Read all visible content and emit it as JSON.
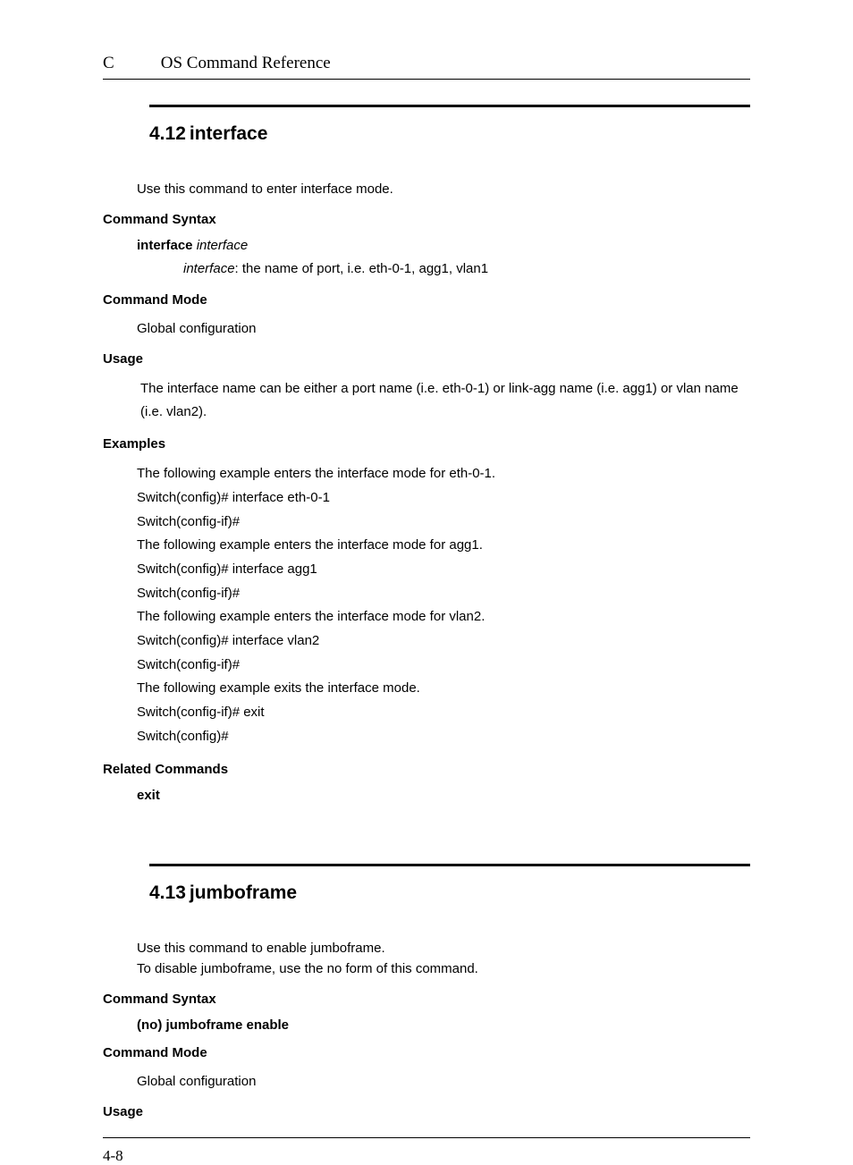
{
  "page": {
    "header_chapter": "C",
    "header_title": "OS Command Reference",
    "page_number": "4-8"
  },
  "sections": [
    {
      "number": "4.12",
      "title": "interface",
      "intro": "Use this command to enter interface mode.",
      "sub": {
        "syntax_head": "Command Syntax",
        "syntax_kw": "interface",
        "syntax_arg": "interface",
        "param_arg": "interface",
        "param_desc": ": the name of port, i.e. eth-0-1, agg1, vlan1",
        "mode_head": "Command Mode",
        "mode_body": "Global configuration",
        "usage_head": "Usage",
        "usage_body": "The interface name can be either a port name (i.e. eth-0-1) or link-agg name (i.e. agg1) or vlan name (i.e. vlan2).",
        "examples_head": "Examples",
        "examples": [
          "The following example enters the interface mode for eth-0-1.",
          "Switch(config)# interface eth-0-1",
          "Switch(config-if)#",
          "The following example enters the interface mode for agg1.",
          "Switch(config)# interface agg1",
          "Switch(config-if)#",
          "The following example enters the interface mode for vlan2.",
          "Switch(config)# interface vlan2",
          "Switch(config-if)#",
          "The following example exits the interface mode.",
          "Switch(config-if)# exit",
          "Switch(config)#"
        ],
        "related_head": "Related Commands",
        "related_body": "exit"
      }
    },
    {
      "number": "4.13",
      "title": "jumboframe",
      "intro_lines": [
        "Use this command to enable jumboframe.",
        "To disable jumboframe, use the no form of this command."
      ],
      "sub": {
        "syntax_head": "Command Syntax",
        "syntax_line": "(no) jumboframe enable",
        "mode_head": "Command Mode",
        "mode_body": "Global configuration",
        "usage_head": "Usage"
      }
    }
  ]
}
